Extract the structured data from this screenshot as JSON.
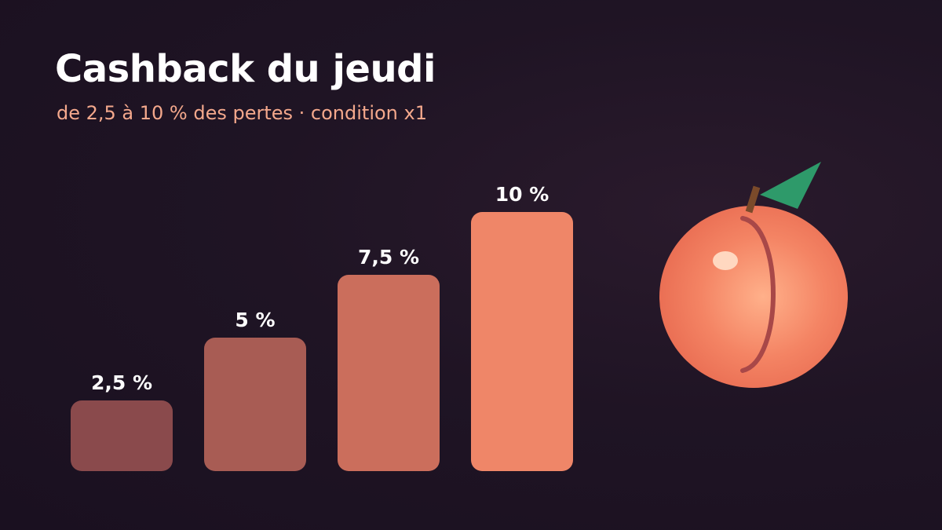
{
  "header": {
    "title": "Cashback du jeudi",
    "subtitle": "de 2,5 à 10 % des pertes · condition x1"
  },
  "icons": {
    "illustration": "peach-icon"
  },
  "colors": {
    "background": "#1f1424",
    "title": "#ffffff",
    "subtitle": "#f4a88c",
    "label": "#ffffff",
    "bars": [
      "#8a4a4c",
      "#a85c54",
      "#cb6e5c",
      "#ef8668"
    ],
    "peach_body": "#f48464",
    "peach_highlight": "#ffd8c0",
    "peach_crease": "#a84848",
    "stem": "#7a4a2a",
    "leaf": "#2e9a6a"
  },
  "chart_data": {
    "type": "bar",
    "categories": [
      "2,5 %",
      "5 %",
      "7,5 %",
      "10 %"
    ],
    "values": [
      2.5,
      5,
      7.5,
      10
    ],
    "labels": [
      "2,5 %",
      "5 %",
      "7,5 %",
      "10 %"
    ],
    "title": "Cashback du jeudi",
    "subtitle": "de 2,5 à 10 % des pertes · condition x1",
    "xlabel": "",
    "ylabel": "",
    "ylim": [
      0,
      10
    ],
    "grid": false,
    "legend": "none"
  }
}
